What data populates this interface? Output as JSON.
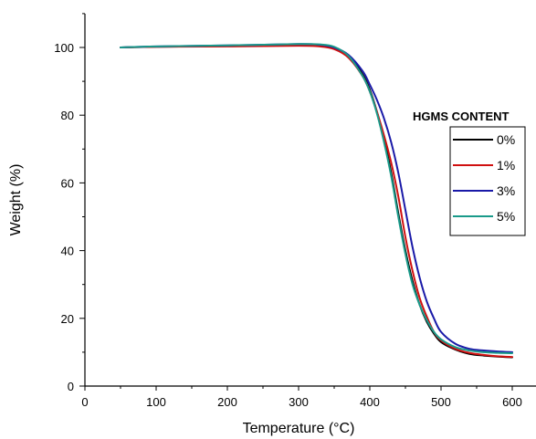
{
  "chart_data": {
    "type": "line",
    "xlabel": "Temperature (°C)",
    "ylabel": "Weight (%)",
    "xlim": [
      0,
      620
    ],
    "ylim": [
      0,
      110
    ],
    "x_ticks": [
      0,
      100,
      200,
      300,
      400,
      500,
      600
    ],
    "y_ticks": [
      0,
      20,
      40,
      60,
      80,
      100
    ],
    "grid": false,
    "legend": {
      "title": "HGMS CONTENT",
      "placement": "right"
    },
    "series": [
      {
        "name": "0%",
        "color": "#000000",
        "x": [
          50,
          100,
          200,
          300,
          330,
          350,
          370,
          390,
          400,
          410,
          420,
          430,
          440,
          450,
          460,
          470,
          480,
          490,
          500,
          520,
          540,
          560,
          580,
          600
        ],
        "y": [
          100,
          100.2,
          100.4,
          100.6,
          100.5,
          99.8,
          97.5,
          92,
          87.5,
          81,
          73,
          63,
          51,
          40,
          31,
          24,
          19,
          15.5,
          13,
          10.8,
          9.5,
          9,
          8.7,
          8.5
        ]
      },
      {
        "name": "1%",
        "color": "#d01010",
        "x": [
          50,
          100,
          200,
          300,
          330,
          350,
          370,
          390,
          400,
          410,
          420,
          430,
          440,
          450,
          460,
          470,
          480,
          490,
          500,
          520,
          540,
          560,
          580,
          600
        ],
        "y": [
          100,
          100.2,
          100.3,
          100.5,
          100.3,
          99.5,
          97,
          91.5,
          87,
          81,
          74,
          66,
          56,
          44,
          34,
          26,
          20.5,
          16,
          13.5,
          11,
          9.8,
          9.2,
          8.8,
          8.6
        ]
      },
      {
        "name": "3%",
        "color": "#1a1aa8",
        "x": [
          50,
          100,
          200,
          300,
          330,
          350,
          370,
          390,
          400,
          410,
          420,
          430,
          440,
          450,
          460,
          470,
          480,
          490,
          500,
          520,
          540,
          560,
          580,
          600
        ],
        "y": [
          100,
          100.3,
          100.6,
          101,
          100.8,
          100,
          97.8,
          93,
          89,
          84.5,
          79,
          72,
          63,
          52,
          41,
          32,
          25,
          20,
          16,
          12.5,
          11,
          10.5,
          10.2,
          10
        ]
      },
      {
        "name": "5%",
        "color": "#1a9a8a",
        "x": [
          50,
          100,
          200,
          300,
          330,
          350,
          370,
          390,
          400,
          410,
          420,
          430,
          440,
          450,
          460,
          470,
          480,
          490,
          500,
          520,
          540,
          560,
          580,
          600
        ],
        "y": [
          100,
          100.3,
          100.6,
          101,
          100.9,
          100.2,
          97.5,
          91.5,
          87,
          80.5,
          72,
          62,
          50,
          39,
          30,
          24,
          19.5,
          16,
          13.8,
          11.5,
          10.5,
          10,
          9.8,
          9.7
        ]
      }
    ]
  }
}
